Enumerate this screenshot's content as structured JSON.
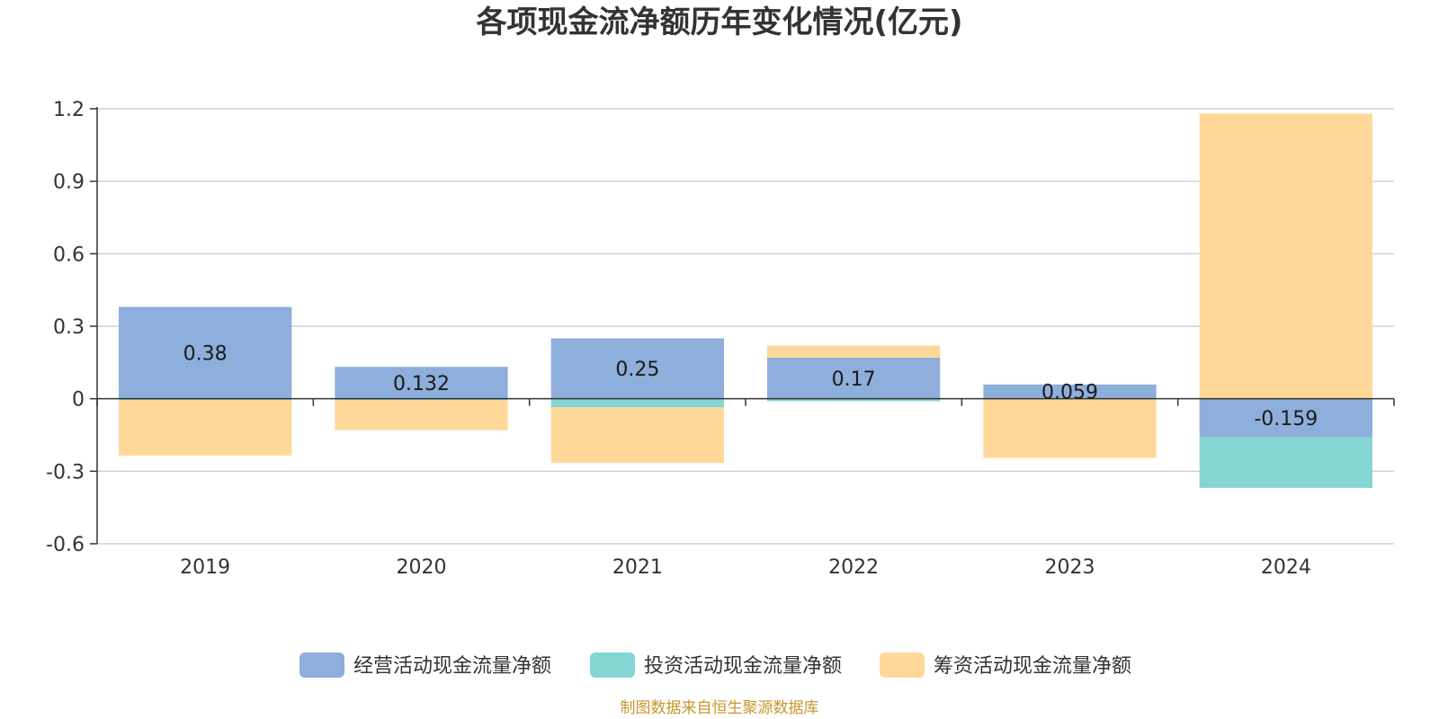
{
  "chart_data": {
    "type": "bar",
    "stacked": true,
    "title": "各项现金流净额历年变化情况(亿元)",
    "categories": [
      "2019",
      "2020",
      "2021",
      "2022",
      "2023",
      "2024"
    ],
    "ylim": [
      -0.6,
      1.2
    ],
    "yticks": [
      1.2,
      0.9,
      0.6,
      0.3,
      0,
      -0.3,
      -0.6
    ],
    "ytick_labels": [
      "1.2",
      "0.9",
      "0.6",
      "0.3",
      "0",
      "-0.3",
      "-0.6"
    ],
    "grid": true,
    "legend_position": "bottom",
    "series": [
      {
        "name": "经营活动现金流量净额",
        "color": "#8EAEDB",
        "values": [
          0.38,
          0.132,
          0.25,
          0.17,
          0.059,
          -0.159
        ],
        "labels": [
          "0.38",
          "0.132",
          "0.25",
          "0.17",
          "0.059",
          "-0.159"
        ]
      },
      {
        "name": "投资活动现金流量净额",
        "color": "#86D5D5",
        "values": [
          -0.005,
          -0.005,
          -0.035,
          -0.01,
          0,
          -0.21
        ]
      },
      {
        "name": "筹资活动现金流量净额",
        "color": "#FFD899",
        "values": [
          -0.23,
          -0.125,
          -0.23,
          0.05,
          -0.245,
          1.18
        ]
      }
    ]
  },
  "source": {
    "text": "制图数据来自恒生聚源数据库",
    "color": "#C8962C"
  }
}
